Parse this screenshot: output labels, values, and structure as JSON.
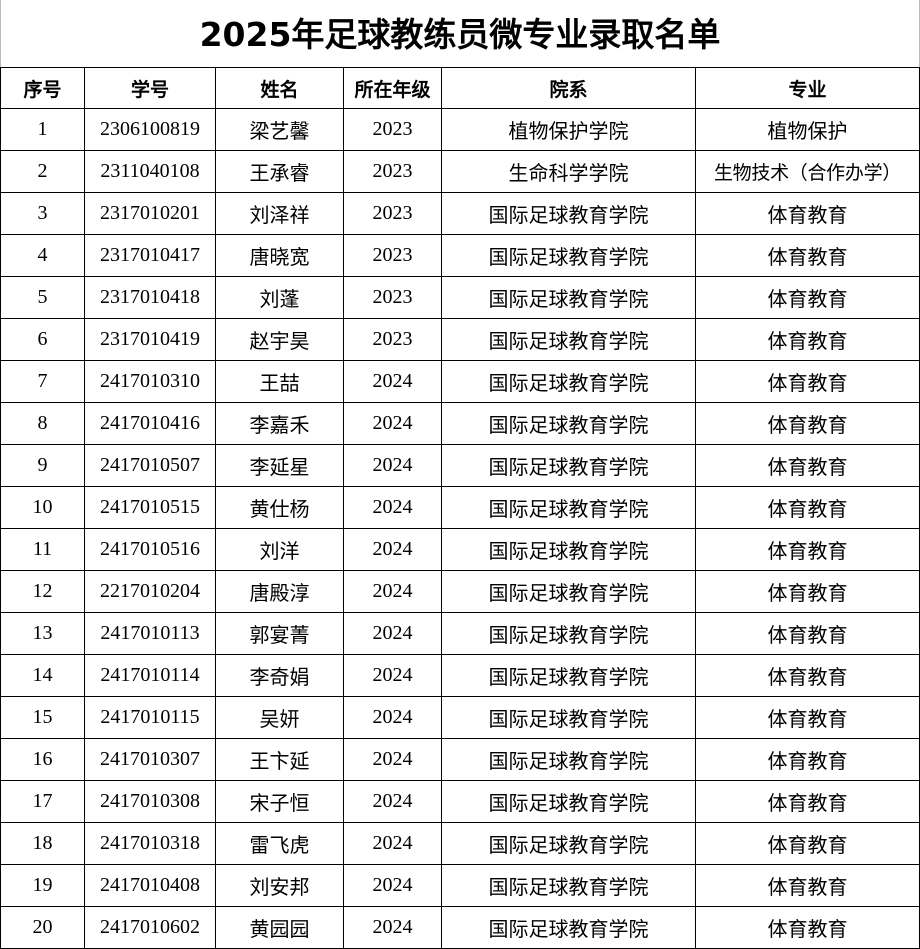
{
  "title": "2025年足球教练员微专业录取名单",
  "columns": [
    "序号",
    "学号",
    "姓名",
    "所在年级",
    "院系",
    "专业"
  ],
  "rows": [
    [
      "1",
      "2306100819",
      "梁艺馨",
      "2023",
      "植物保护学院",
      "植物保护"
    ],
    [
      "2",
      "2311040108",
      "王承睿",
      "2023",
      "生命科学学院",
      "生物技术（合作办学）"
    ],
    [
      "3",
      "2317010201",
      "刘泽祥",
      "2023",
      "国际足球教育学院",
      "体育教育"
    ],
    [
      "4",
      "2317010417",
      "唐晓宽",
      "2023",
      "国际足球教育学院",
      "体育教育"
    ],
    [
      "5",
      "2317010418",
      "刘蓬",
      "2023",
      "国际足球教育学院",
      "体育教育"
    ],
    [
      "6",
      "2317010419",
      "赵宇昊",
      "2023",
      "国际足球教育学院",
      "体育教育"
    ],
    [
      "7",
      "2417010310",
      "王喆",
      "2024",
      "国际足球教育学院",
      "体育教育"
    ],
    [
      "8",
      "2417010416",
      "李嘉禾",
      "2024",
      "国际足球教育学院",
      "体育教育"
    ],
    [
      "9",
      "2417010507",
      "李延星",
      "2024",
      "国际足球教育学院",
      "体育教育"
    ],
    [
      "10",
      "2417010515",
      "黄仕杨",
      "2024",
      "国际足球教育学院",
      "体育教育"
    ],
    [
      "11",
      "2417010516",
      "刘洋",
      "2024",
      "国际足球教育学院",
      "体育教育"
    ],
    [
      "12",
      "2217010204",
      "唐殿淳",
      "2024",
      "国际足球教育学院",
      "体育教育"
    ],
    [
      "13",
      "2417010113",
      "郭宴菁",
      "2024",
      "国际足球教育学院",
      "体育教育"
    ],
    [
      "14",
      "2417010114",
      "李奇娟",
      "2024",
      "国际足球教育学院",
      "体育教育"
    ],
    [
      "15",
      "2417010115",
      "吴妍",
      "2024",
      "国际足球教育学院",
      "体育教育"
    ],
    [
      "16",
      "2417010307",
      "王卞延",
      "2024",
      "国际足球教育学院",
      "体育教育"
    ],
    [
      "17",
      "2417010308",
      "宋子恒",
      "2024",
      "国际足球教育学院",
      "体育教育"
    ],
    [
      "18",
      "2417010318",
      "雷飞虎",
      "2024",
      "国际足球教育学院",
      "体育教育"
    ],
    [
      "19",
      "2417010408",
      "刘安邦",
      "2024",
      "国际足球教育学院",
      "体育教育"
    ],
    [
      "20",
      "2417010602",
      "黄园园",
      "2024",
      "国际足球教育学院",
      "体育教育"
    ]
  ]
}
